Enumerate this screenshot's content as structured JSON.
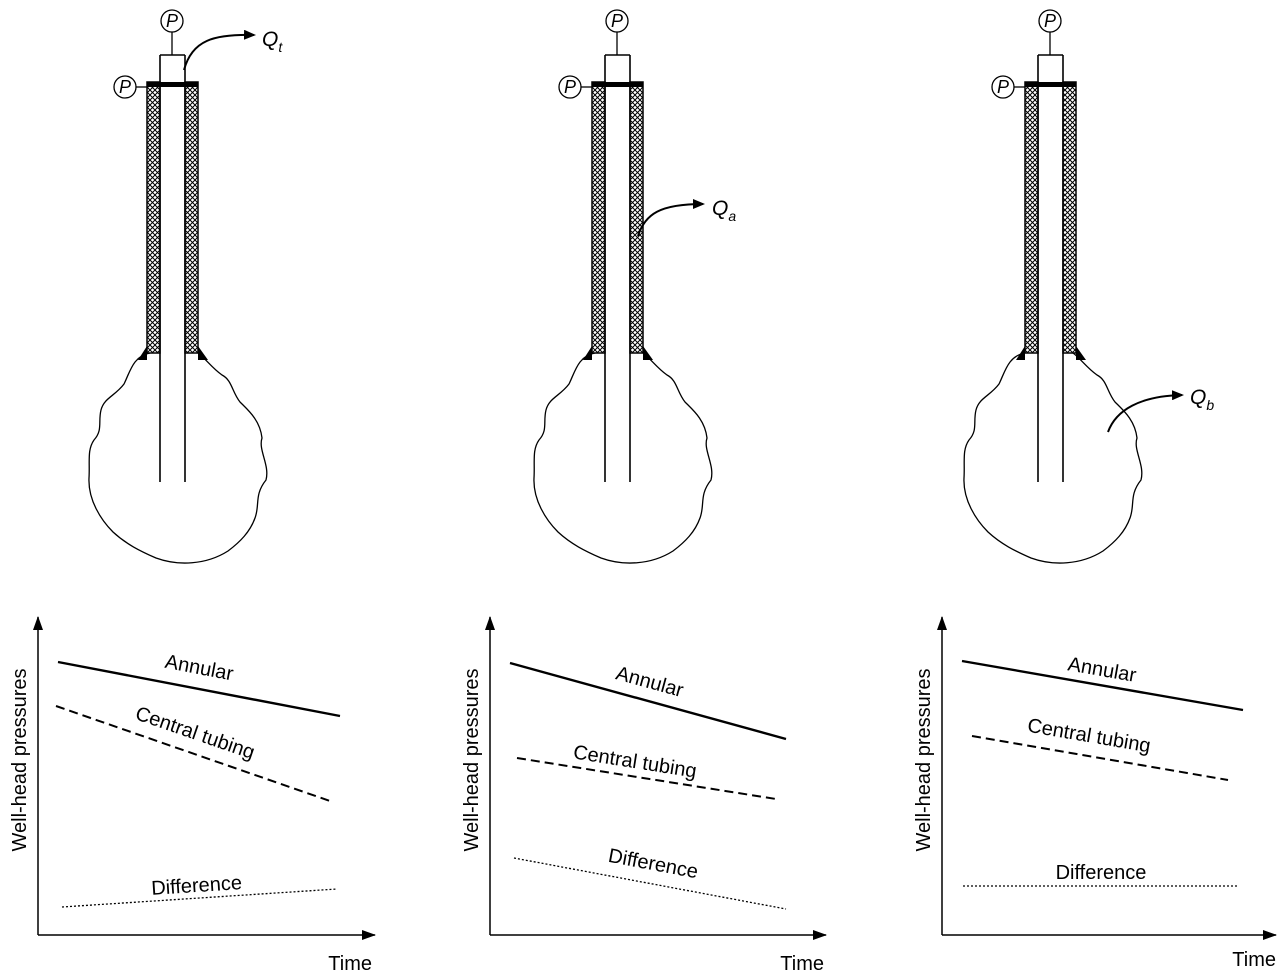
{
  "gauge_symbol": "P",
  "panels": [
    {
      "flow": {
        "symbol": "Q",
        "subscript": "t"
      },
      "series": [
        {
          "name": "Annular",
          "style": "solid"
        },
        {
          "name": "Central tubing",
          "style": "dashed"
        },
        {
          "name": "Difference",
          "style": "dotted"
        }
      ],
      "xlabel": "Time",
      "ylabel": "Well-head pressures"
    },
    {
      "flow": {
        "symbol": "Q",
        "subscript": "a"
      },
      "series": [
        {
          "name": "Annular",
          "style": "solid"
        },
        {
          "name": "Central tubing",
          "style": "dashed"
        },
        {
          "name": "Difference",
          "style": "dotted"
        }
      ],
      "xlabel": "Time",
      "ylabel": "Well-head pressures"
    },
    {
      "flow": {
        "symbol": "Q",
        "subscript": "b"
      },
      "series": [
        {
          "name": "Annular",
          "style": "solid"
        },
        {
          "name": "Central tubing",
          "style": "dashed"
        },
        {
          "name": "Difference",
          "style": "dotted"
        }
      ],
      "xlabel": "Time",
      "ylabel": "Well-head pressures"
    }
  ]
}
